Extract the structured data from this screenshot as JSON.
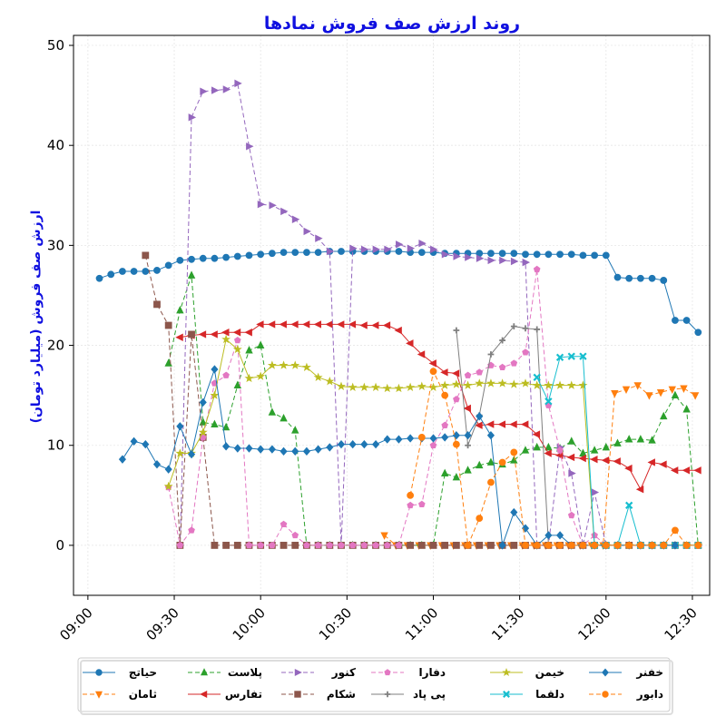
{
  "chart_data": {
    "type": "line",
    "title": "روند ارزش صف فروش نمادها",
    "ylabel": "ارزش صف فروش (میلیارد تومان)",
    "xlabel": "",
    "x_ticks": [
      "09:00",
      "09:30",
      "10:00",
      "10:30",
      "11:00",
      "11:30",
      "12:00",
      "12:30"
    ],
    "y_ticks": [
      0,
      10,
      20,
      30,
      40,
      50
    ],
    "xlim": [
      "08:55",
      "12:36"
    ],
    "ylim": [
      -5,
      51
    ],
    "grid": true,
    "legend_position": "bottom",
    "series": [
      {
        "name": "حیاتج",
        "color": "#1f77b4",
        "marker": "circle",
        "dash": false,
        "x": [
          "09:04",
          "09:08",
          "09:12",
          "09:16",
          "09:20",
          "09:24",
          "09:28",
          "09:32",
          "09:36",
          "09:40",
          "09:44",
          "09:48",
          "09:52",
          "09:56",
          "10:00",
          "10:04",
          "10:08",
          "10:12",
          "10:16",
          "10:20",
          "10:24",
          "10:28",
          "10:32",
          "10:36",
          "10:40",
          "10:44",
          "10:48",
          "10:52",
          "10:56",
          "11:00",
          "11:04",
          "11:08",
          "11:12",
          "11:16",
          "11:20",
          "11:24",
          "11:28",
          "11:32",
          "11:36",
          "11:40",
          "11:44",
          "11:48",
          "11:52",
          "11:56",
          "12:00",
          "12:04",
          "12:08",
          "12:12",
          "12:16",
          "12:20",
          "12:24",
          "12:28",
          "12:32"
        ],
        "y": [
          26.7,
          27.1,
          27.4,
          27.4,
          27.4,
          27.5,
          28.0,
          28.5,
          28.6,
          28.7,
          28.7,
          28.8,
          28.9,
          29.0,
          29.1,
          29.2,
          29.3,
          29.3,
          29.3,
          29.3,
          29.4,
          29.4,
          29.4,
          29.4,
          29.4,
          29.4,
          29.4,
          29.3,
          29.3,
          29.3,
          29.2,
          29.2,
          29.2,
          29.2,
          29.2,
          29.2,
          29.2,
          29.1,
          29.1,
          29.1,
          29.1,
          29.1,
          29.0,
          29.0,
          29.0,
          26.8,
          26.7,
          26.7,
          26.7,
          26.5,
          22.5,
          22.5,
          21.3
        ]
      },
      {
        "name": "ثامان",
        "color": "#ff7f0e",
        "marker": "triangle-down",
        "dash": true,
        "x": [
          "10:43",
          "10:47",
          "10:51",
          "10:55",
          "10:59",
          "11:03",
          "11:07",
          "11:11",
          "11:15",
          "11:19",
          "11:23",
          "11:27",
          "11:31",
          "11:35",
          "11:39",
          "11:43",
          "11:47",
          "11:51",
          "11:55",
          "11:59",
          "12:03",
          "12:07",
          "12:11",
          "12:15",
          "12:19",
          "12:23",
          "12:27",
          "12:31"
        ],
        "y": [
          1.0,
          0,
          0,
          0,
          0,
          0,
          0,
          0,
          0,
          0,
          0,
          0,
          0,
          0,
          0,
          0,
          0,
          0,
          0,
          0,
          15.2,
          15.6,
          16.0,
          15.0,
          15.3,
          15.6,
          15.7,
          15.0
        ]
      },
      {
        "name": "پلاست",
        "color": "#2ca02c",
        "marker": "triangle-up",
        "dash": true,
        "x": [
          "09:28",
          "09:32",
          "09:36",
          "09:40",
          "09:44",
          "09:48",
          "09:52",
          "09:56",
          "10:00",
          "10:04",
          "10:08",
          "10:12",
          "10:16",
          "10:20",
          "10:24",
          "10:28",
          "10:32",
          "10:36",
          "10:40",
          "10:44",
          "10:48",
          "10:52",
          "10:56",
          "11:00",
          "11:04",
          "11:08",
          "11:12",
          "11:16",
          "11:20",
          "11:24",
          "11:28",
          "11:32",
          "11:36",
          "11:40",
          "11:44",
          "11:48",
          "11:52",
          "11:56",
          "12:00",
          "12:04",
          "12:08",
          "12:12",
          "12:16",
          "12:20",
          "12:24",
          "12:28",
          "12:32"
        ],
        "y": [
          18.2,
          23.5,
          27.0,
          12.3,
          12.1,
          11.8,
          16.0,
          19.5,
          20.0,
          13.3,
          12.7,
          11.5,
          0,
          0,
          0,
          0,
          0,
          0,
          0,
          0,
          0,
          0,
          0,
          0,
          7.2,
          6.8,
          7.5,
          8.0,
          8.3,
          8.1,
          8.5,
          9.5,
          9.8,
          9.8,
          9.7,
          10.4,
          9.2,
          9.5,
          9.8,
          10.2,
          10.6,
          10.6,
          10.5,
          12.9,
          15.0,
          13.6,
          0
        ]
      },
      {
        "name": "تفارس",
        "color": "#d62728",
        "marker": "triangle-left",
        "dash": false,
        "x": [
          "09:32",
          "09:36",
          "09:40",
          "09:44",
          "09:48",
          "09:52",
          "09:56",
          "10:00",
          "10:04",
          "10:08",
          "10:12",
          "10:16",
          "10:20",
          "10:24",
          "10:28",
          "10:32",
          "10:36",
          "10:40",
          "10:44",
          "10:48",
          "10:52",
          "10:56",
          "11:00",
          "11:04",
          "11:08",
          "11:12",
          "11:16",
          "11:20",
          "11:24",
          "11:28",
          "11:32",
          "11:36",
          "11:40",
          "11:44",
          "11:48",
          "11:52",
          "11:56",
          "12:00",
          "12:04",
          "12:08",
          "12:12",
          "12:16",
          "12:20",
          "12:24",
          "12:28",
          "12:32"
        ],
        "y": [
          20.8,
          21.0,
          21.1,
          21.1,
          21.3,
          21.3,
          21.3,
          22.1,
          22.1,
          22.1,
          22.1,
          22.1,
          22.1,
          22.1,
          22.1,
          22.1,
          22.0,
          22.0,
          22.0,
          21.5,
          20.2,
          19.1,
          18.2,
          17.3,
          17.2,
          13.7,
          12.0,
          12.1,
          12.1,
          12.1,
          12.1,
          11.1,
          9.2,
          9.0,
          8.8,
          8.7,
          8.6,
          8.5,
          8.4,
          7.7,
          5.6,
          8.3,
          8.1,
          7.5,
          7.5,
          7.5
        ]
      },
      {
        "name": "کنور",
        "color": "#9467bd",
        "marker": "triangle-right",
        "dash": true,
        "x": [
          "09:32",
          "09:36",
          "09:40",
          "09:44",
          "09:48",
          "09:52",
          "09:56",
          "10:00",
          "10:04",
          "10:08",
          "10:12",
          "10:16",
          "10:20",
          "10:24",
          "10:28",
          "10:32",
          "10:36",
          "10:40",
          "10:44",
          "10:48",
          "10:52",
          "10:56",
          "11:00",
          "11:04",
          "11:08",
          "11:12",
          "11:16",
          "11:20",
          "11:24",
          "11:28",
          "11:32",
          "11:36",
          "11:40",
          "11:44",
          "11:48",
          "11:52",
          "11:56",
          "12:00",
          "12:04",
          "12:08",
          "12:12",
          "12:16",
          "12:20",
          "12:24",
          "12:28",
          "12:32"
        ],
        "y": [
          0,
          42.8,
          45.4,
          45.5,
          45.6,
          46.2,
          39.9,
          34.1,
          34.0,
          33.4,
          32.6,
          31.4,
          30.7,
          29.4,
          0,
          29.7,
          29.6,
          29.6,
          29.6,
          30.1,
          29.7,
          30.2,
          29.6,
          29.1,
          28.9,
          28.8,
          28.7,
          28.5,
          28.5,
          28.4,
          28.3,
          0,
          0,
          9.8,
          7.2,
          0,
          5.3,
          0,
          0,
          0,
          0,
          0,
          0,
          0,
          0,
          0
        ]
      },
      {
        "name": "شکام",
        "color": "#8c564b",
        "marker": "square",
        "dash": true,
        "x": [
          "09:20",
          "09:24",
          "09:28",
          "09:32",
          "09:36",
          "09:40",
          "09:44",
          "09:48",
          "09:52",
          "09:56",
          "10:00",
          "10:04",
          "10:08",
          "10:12",
          "10:16",
          "10:20",
          "10:24",
          "10:28",
          "10:32",
          "10:36",
          "10:40",
          "10:44",
          "10:48",
          "10:52",
          "10:56",
          "11:00",
          "11:04",
          "11:08",
          "11:12",
          "11:16",
          "11:20",
          "11:24",
          "11:28",
          "11:32",
          "11:36",
          "11:40",
          "11:44",
          "11:48",
          "11:52",
          "11:56",
          "12:00",
          "12:04",
          "12:08",
          "12:12",
          "12:16",
          "12:20",
          "12:24",
          "12:28",
          "12:32"
        ],
        "y": [
          29.0,
          24.1,
          22.0,
          0,
          21.1,
          10.8,
          0,
          0,
          0,
          0,
          0,
          0,
          0,
          0,
          0,
          0,
          0,
          0,
          0,
          0,
          0,
          0,
          0,
          0,
          0,
          0,
          0,
          0,
          0,
          0,
          0,
          0,
          0,
          0,
          0,
          0,
          0,
          0,
          0,
          0,
          0,
          0,
          0,
          0,
          0,
          0,
          0,
          0,
          0
        ]
      },
      {
        "name": "دفارا",
        "color": "#e377c2",
        "marker": "pentagon",
        "dash": true,
        "x": [
          "09:28",
          "09:32",
          "09:36",
          "09:40",
          "09:44",
          "09:48",
          "09:52",
          "09:56",
          "10:00",
          "10:04",
          "10:08",
          "10:12",
          "10:16",
          "10:20",
          "10:24",
          "10:28",
          "10:32",
          "10:36",
          "10:40",
          "10:44",
          "10:48",
          "10:52",
          "10:56",
          "11:00",
          "11:04",
          "11:08",
          "11:12",
          "11:16",
          "11:20",
          "11:24",
          "11:28",
          "11:32",
          "11:36",
          "11:40",
          "11:44",
          "11:48",
          "11:52",
          "11:56",
          "12:00",
          "12:04",
          "12:08",
          "12:12",
          "12:16",
          "12:20",
          "12:24",
          "12:28",
          "12:32"
        ],
        "y": [
          5.8,
          0,
          1.5,
          10.8,
          16.2,
          17.0,
          20.5,
          0,
          0,
          0,
          2.1,
          1.0,
          0,
          0,
          0,
          0,
          0,
          0,
          0,
          0,
          0,
          4.0,
          4.1,
          10.0,
          12.0,
          14.6,
          17.0,
          17.3,
          18.0,
          17.8,
          18.2,
          19.3,
          27.6,
          14.0,
          9.5,
          3.0,
          0,
          1.0,
          0,
          0,
          0,
          0,
          0,
          0,
          0,
          0,
          0
        ]
      },
      {
        "name": "پی پاد",
        "color": "#7f7f7f",
        "marker": "plus",
        "dash": false,
        "x": [
          "11:08",
          "11:12",
          "11:16",
          "11:20",
          "11:24",
          "11:28",
          "11:32",
          "11:36",
          "11:40"
        ],
        "y": [
          21.5,
          10.0,
          13.0,
          19.1,
          20.5,
          21.9,
          21.7,
          21.6,
          0
        ]
      },
      {
        "name": "خیمن",
        "color": "#bcbd22",
        "marker": "star",
        "dash": false,
        "x": [
          "09:28",
          "09:32",
          "09:36",
          "09:40",
          "09:44",
          "09:48",
          "09:52",
          "09:56",
          "10:00",
          "10:04",
          "10:08",
          "10:12",
          "10:16",
          "10:20",
          "10:24",
          "10:28",
          "10:32",
          "10:36",
          "10:40",
          "10:44",
          "10:48",
          "10:52",
          "10:56",
          "11:00",
          "11:04",
          "11:08",
          "11:12",
          "11:16",
          "11:20",
          "11:24",
          "11:28",
          "11:32",
          "11:36",
          "11:40",
          "11:44",
          "11:48",
          "11:52",
          "11:56",
          "12:00",
          "12:04",
          "12:08",
          "12:12",
          "12:16",
          "12:20",
          "12:24",
          "12:28",
          "12:32"
        ],
        "y": [
          5.9,
          9.2,
          9.2,
          11.3,
          15.0,
          20.6,
          19.6,
          16.7,
          16.9,
          18.0,
          18.0,
          18.0,
          17.8,
          16.8,
          16.4,
          15.9,
          15.8,
          15.8,
          15.8,
          15.7,
          15.7,
          15.8,
          15.9,
          15.8,
          16.0,
          16.1,
          16.0,
          16.2,
          16.2,
          16.2,
          16.1,
          16.2,
          16.0,
          16.0,
          16.0,
          16.0,
          16.0,
          0,
          0,
          0,
          0,
          0,
          0,
          0,
          0,
          0,
          0
        ]
      },
      {
        "name": "دلقما",
        "color": "#17becf",
        "marker": "x",
        "dash": false,
        "x": [
          "11:36",
          "11:40",
          "11:44",
          "11:48",
          "11:52",
          "11:56",
          "12:00",
          "12:04",
          "12:08",
          "12:12",
          "12:16",
          "12:20",
          "12:24",
          "12:28",
          "12:32"
        ],
        "y": [
          16.8,
          14.4,
          18.8,
          18.9,
          18.9,
          0,
          0,
          0,
          4.0,
          0,
          0,
          0,
          0,
          0,
          0
        ]
      },
      {
        "name": "خفنر",
        "color": "#1f77b4",
        "marker": "diamond",
        "dash": false,
        "x": [
          "09:12",
          "09:16",
          "09:20",
          "09:24",
          "09:28",
          "09:32",
          "09:36",
          "09:40",
          "09:44",
          "09:48",
          "09:52",
          "09:56",
          "10:00",
          "10:04",
          "10:08",
          "10:12",
          "10:16",
          "10:20",
          "10:24",
          "10:28",
          "10:32",
          "10:36",
          "10:40",
          "10:44",
          "10:48",
          "10:52",
          "10:56",
          "11:00",
          "11:04",
          "11:08",
          "11:12",
          "11:16",
          "11:20",
          "11:24",
          "11:28",
          "11:32",
          "11:36",
          "11:40",
          "11:44",
          "11:48",
          "11:52",
          "11:56",
          "12:00",
          "12:04",
          "12:08",
          "12:12",
          "12:16",
          "12:20",
          "12:24"
        ],
        "y": [
          8.6,
          10.4,
          10.1,
          8.1,
          7.6,
          11.9,
          9.1,
          14.3,
          17.6,
          9.9,
          9.7,
          9.7,
          9.6,
          9.6,
          9.4,
          9.4,
          9.4,
          9.6,
          9.8,
          10.1,
          10.1,
          10.1,
          10.1,
          10.6,
          10.6,
          10.7,
          10.7,
          10.7,
          10.8,
          11.0,
          11.0,
          12.9,
          11.0,
          0,
          3.3,
          1.7,
          0,
          1.0,
          1.0,
          0,
          0,
          0,
          0,
          0,
          0,
          0,
          0,
          0,
          0
        ]
      },
      {
        "name": "دابور",
        "color": "#ff7f0e",
        "marker": "circle",
        "dash": true,
        "x": [
          "10:52",
          "10:56",
          "11:00",
          "11:04",
          "11:08",
          "11:12",
          "11:16",
          "11:20",
          "11:24",
          "11:28",
          "11:32",
          "11:36",
          "11:40",
          "11:44",
          "11:48",
          "11:52",
          "11:56",
          "12:00",
          "12:04",
          "12:08",
          "12:12",
          "12:16",
          "12:20",
          "12:24",
          "12:28",
          "12:32"
        ],
        "y": [
          5.0,
          10.8,
          17.4,
          15.0,
          10.1,
          0,
          2.7,
          6.3,
          8.3,
          9.3,
          0,
          0,
          0,
          0,
          0,
          0,
          0,
          0,
          0,
          0,
          0,
          0,
          0,
          1.5,
          0,
          0
        ]
      }
    ]
  }
}
